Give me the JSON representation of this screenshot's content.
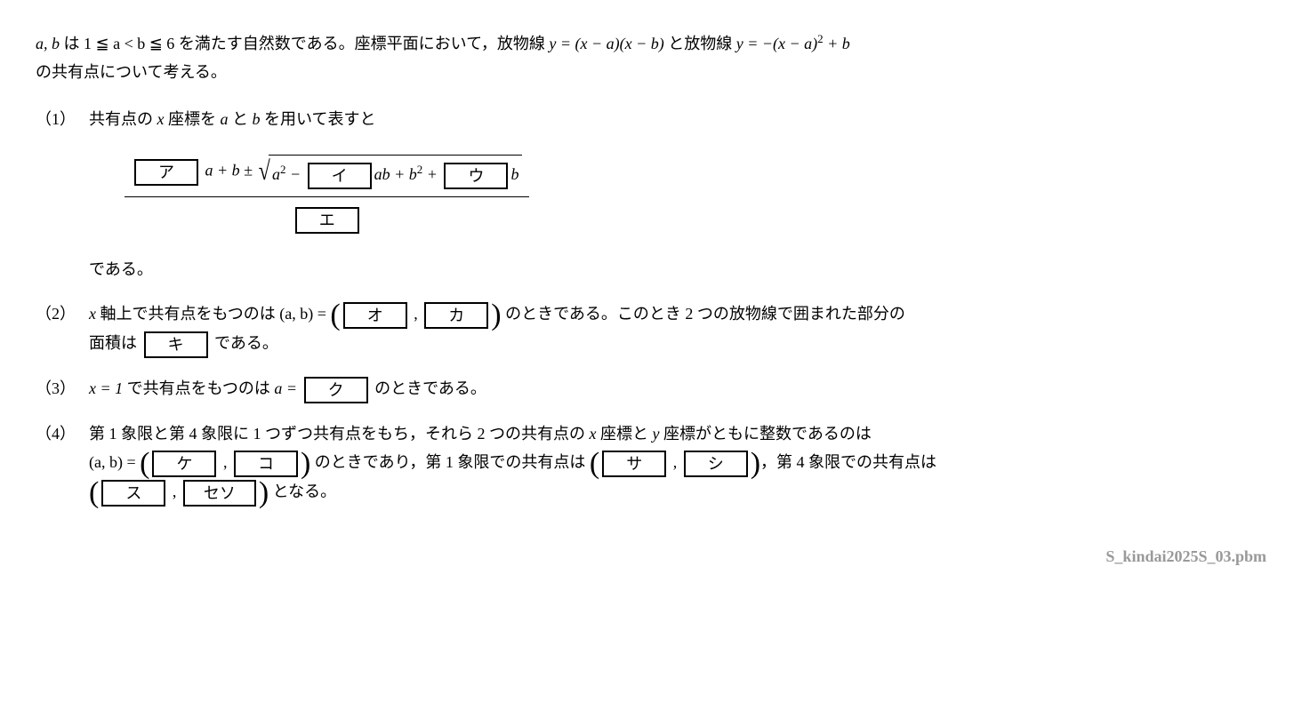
{
  "intro": {
    "line1_a": "a, b",
    "line1_b": " は ",
    "cond": "1 ≦ a < b ≦ 6",
    "line1_c": " を満たす自然数である。座標平面において，放物線 ",
    "eq1_lhs": "y = (x − a)(x − b)",
    "line1_d": " と放物線 ",
    "eq2_lhs": "y = −(x − a)",
    "eq2_sup": "2",
    "eq2_rhs": " + b",
    "line2": "の共有点について考える。"
  },
  "p1": {
    "num": "（1）",
    "text1": "共有点の ",
    "x": "x",
    "text2": " 座標を ",
    "a": "a",
    "text3": " と ",
    "b": "b",
    "text4": " を用いて表すと",
    "box_a": "ア",
    "frag1": "a + b ± ",
    "sqrt1": "a",
    "sqrt_sup1": "2",
    "sqrt2": " − ",
    "box_i": "イ",
    "sqrt3": "ab + b",
    "sqrt_sup2": "2",
    "sqrt4": " + ",
    "box_u": "ウ",
    "sqrt5": "b",
    "box_e": "エ",
    "text5": "である。"
  },
  "p2": {
    "num": "（2）",
    "x": "x",
    "text1": " 軸上で共有点をもつのは ",
    "ab": "(a,  b) = ",
    "box_o": "オ",
    "comma": " ,  ",
    "box_ka": "カ",
    "text2": " のときである。このとき 2 つの放物線で囲まれた部分の",
    "text3": "面積は ",
    "box_ki": "キ",
    "text4": " である。"
  },
  "p3": {
    "num": "（3）",
    "eq": "x = 1",
    "text1": " で共有点をもつのは ",
    "a_eq": "a = ",
    "box_ku": "ク",
    "text2": " のときである。"
  },
  "p4": {
    "num": "（4）",
    "text1": "第 1 象限と第 4 象限に 1 つずつ共有点をもち，それら 2 つの共有点の ",
    "x": "x",
    "text2": " 座標と ",
    "y": "y",
    "text3": " 座標がともに整数であるのは",
    "ab": "(a,  b) = ",
    "box_ke": "ケ",
    "comma": " ,  ",
    "box_ko": "コ",
    "text4": " のときであり，第 1 象限での共有点は ",
    "box_sa": "サ",
    "box_shi": "シ",
    "text5": "，第 4 象限での共有点は",
    "box_su": "ス",
    "box_seso": "セソ",
    "text6": " となる。"
  },
  "footer": "S_kindai2025S_03.pbm"
}
